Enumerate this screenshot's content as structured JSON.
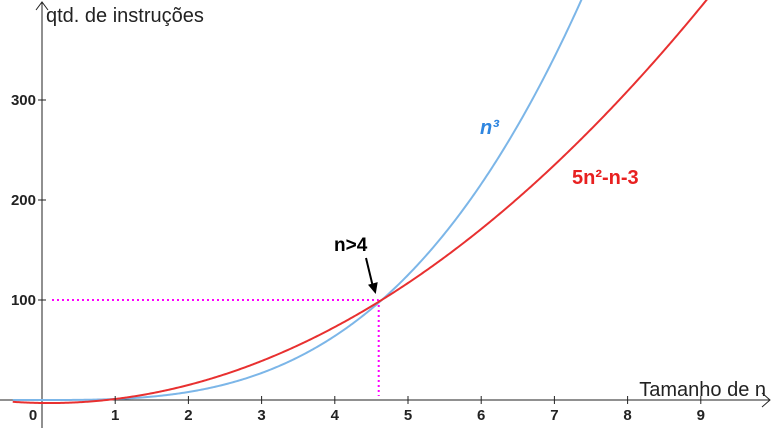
{
  "chart_data": {
    "type": "line",
    "xlabel": "Tamanho de n",
    "ylabel": "qtd. de instruções",
    "xlim": [
      -0.4,
      10.3
    ],
    "ylim": [
      -30,
      400
    ],
    "x_ticks": [
      0,
      1,
      2,
      3,
      4,
      5,
      6,
      7,
      8,
      9
    ],
    "x_tick_labels": [
      "0",
      "1",
      "2",
      "3",
      "4",
      "5",
      "6",
      "7",
      "8",
      "9"
    ],
    "y_ticks": [
      100,
      200,
      300
    ],
    "y_tick_labels": [
      "100",
      "200",
      "300"
    ],
    "grid": false,
    "series": [
      {
        "name": "n³",
        "formula": "n^3",
        "color": "#7cb6e8",
        "label_color": "#2f86e0",
        "points": [
          [
            -0.4,
            -0.06
          ],
          [
            0,
            0
          ],
          [
            0.5,
            0.13
          ],
          [
            1,
            1
          ],
          [
            1.5,
            3.38
          ],
          [
            2,
            8
          ],
          [
            2.5,
            15.63
          ],
          [
            3,
            27
          ],
          [
            3.5,
            42.88
          ],
          [
            4,
            64
          ],
          [
            4.5,
            91.13
          ],
          [
            5,
            125
          ],
          [
            5.5,
            166.38
          ],
          [
            6,
            216
          ],
          [
            6.5,
            274.63
          ],
          [
            7,
            343
          ],
          [
            7.5,
            421.88
          ]
        ]
      },
      {
        "name": "5n²-n-3",
        "formula": "5n^2-n-3",
        "color": "#e83030",
        "label_color": "#e82020",
        "points": [
          [
            -0.4,
            -1.8
          ],
          [
            0,
            -3
          ],
          [
            0.5,
            -2.25
          ],
          [
            1,
            1
          ],
          [
            1.5,
            6.75
          ],
          [
            2,
            15
          ],
          [
            2.5,
            25.75
          ],
          [
            3,
            39
          ],
          [
            3.5,
            54.75
          ],
          [
            4,
            73
          ],
          [
            4.5,
            93.75
          ],
          [
            5,
            117
          ],
          [
            5.5,
            142.75
          ],
          [
            6,
            171
          ],
          [
            6.5,
            201.75
          ],
          [
            7,
            235
          ],
          [
            7.5,
            270.75
          ],
          [
            8,
            309
          ],
          [
            8.5,
            349.75
          ],
          [
            9,
            393
          ],
          [
            9.5,
            438.75
          ]
        ]
      }
    ],
    "intersection": {
      "x": 4.6,
      "y": 100
    },
    "annotation": {
      "text": "n>4",
      "points_to": [
        4.6,
        100
      ]
    },
    "guide_color": "#ff00ff"
  }
}
